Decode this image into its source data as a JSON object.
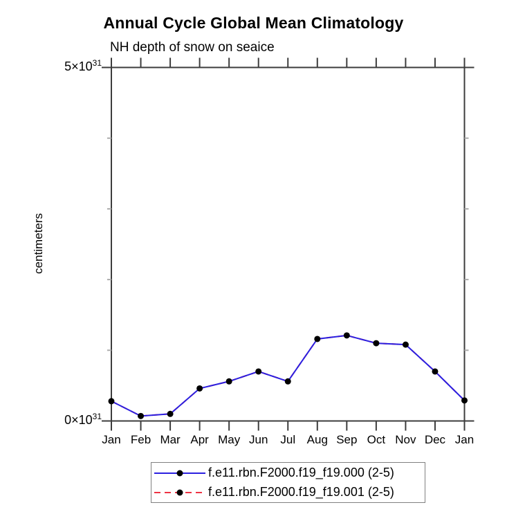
{
  "chart_data": {
    "type": "line",
    "title": "Annual Cycle Global Mean Climatology",
    "subtitle": "NH depth of snow on seaice",
    "ylabel": "centimeters",
    "xlabel": "",
    "categories": [
      "Jan",
      "Feb",
      "Mar",
      "Apr",
      "May",
      "Jun",
      "Jul",
      "Aug",
      "Sep",
      "Oct",
      "Nov",
      "Dec",
      "Jan"
    ],
    "y_axis": {
      "min": 0,
      "max": 5,
      "unit_scale": "10^31",
      "ticks": [
        {
          "label_base": "0×10",
          "label_sup": "31",
          "value": 0
        },
        {
          "label_base": "5×10",
          "label_sup": "31",
          "value": 5
        }
      ],
      "minor_tick_values": [
        1,
        2,
        3,
        4
      ]
    },
    "series": [
      {
        "label": "f.e11.rbn.F2000.f19_f19.000 (2-5)",
        "line_color": "#2b1fe0",
        "line_style": "solid",
        "marker": "black-circle",
        "values_x10e31": [
          0.28,
          0.07,
          0.1,
          0.46,
          0.56,
          0.7,
          0.56,
          1.16,
          1.21,
          1.1,
          1.08,
          0.7,
          0.29
        ]
      },
      {
        "label": "f.e11.rbn.F2000.f19_f19.001 (2-5)",
        "line_color": "#ee3344",
        "line_style": "dashed",
        "marker": "black-circle",
        "values_x10e31": [
          0.28,
          0.07,
          0.1,
          0.46,
          0.56,
          0.7,
          0.56,
          1.16,
          1.21,
          1.1,
          1.08,
          0.7,
          0.29
        ],
        "visibility": "coincident, hidden beneath series 000 in plot area"
      }
    ],
    "legend_position": "bottom-center",
    "grid": false,
    "colors": {
      "axis": "#3c3c3c",
      "text": "#000000",
      "minor_tick": "#ababab",
      "marker": "#000000",
      "legend_border": "#808080",
      "background": "#ffffff"
    }
  }
}
